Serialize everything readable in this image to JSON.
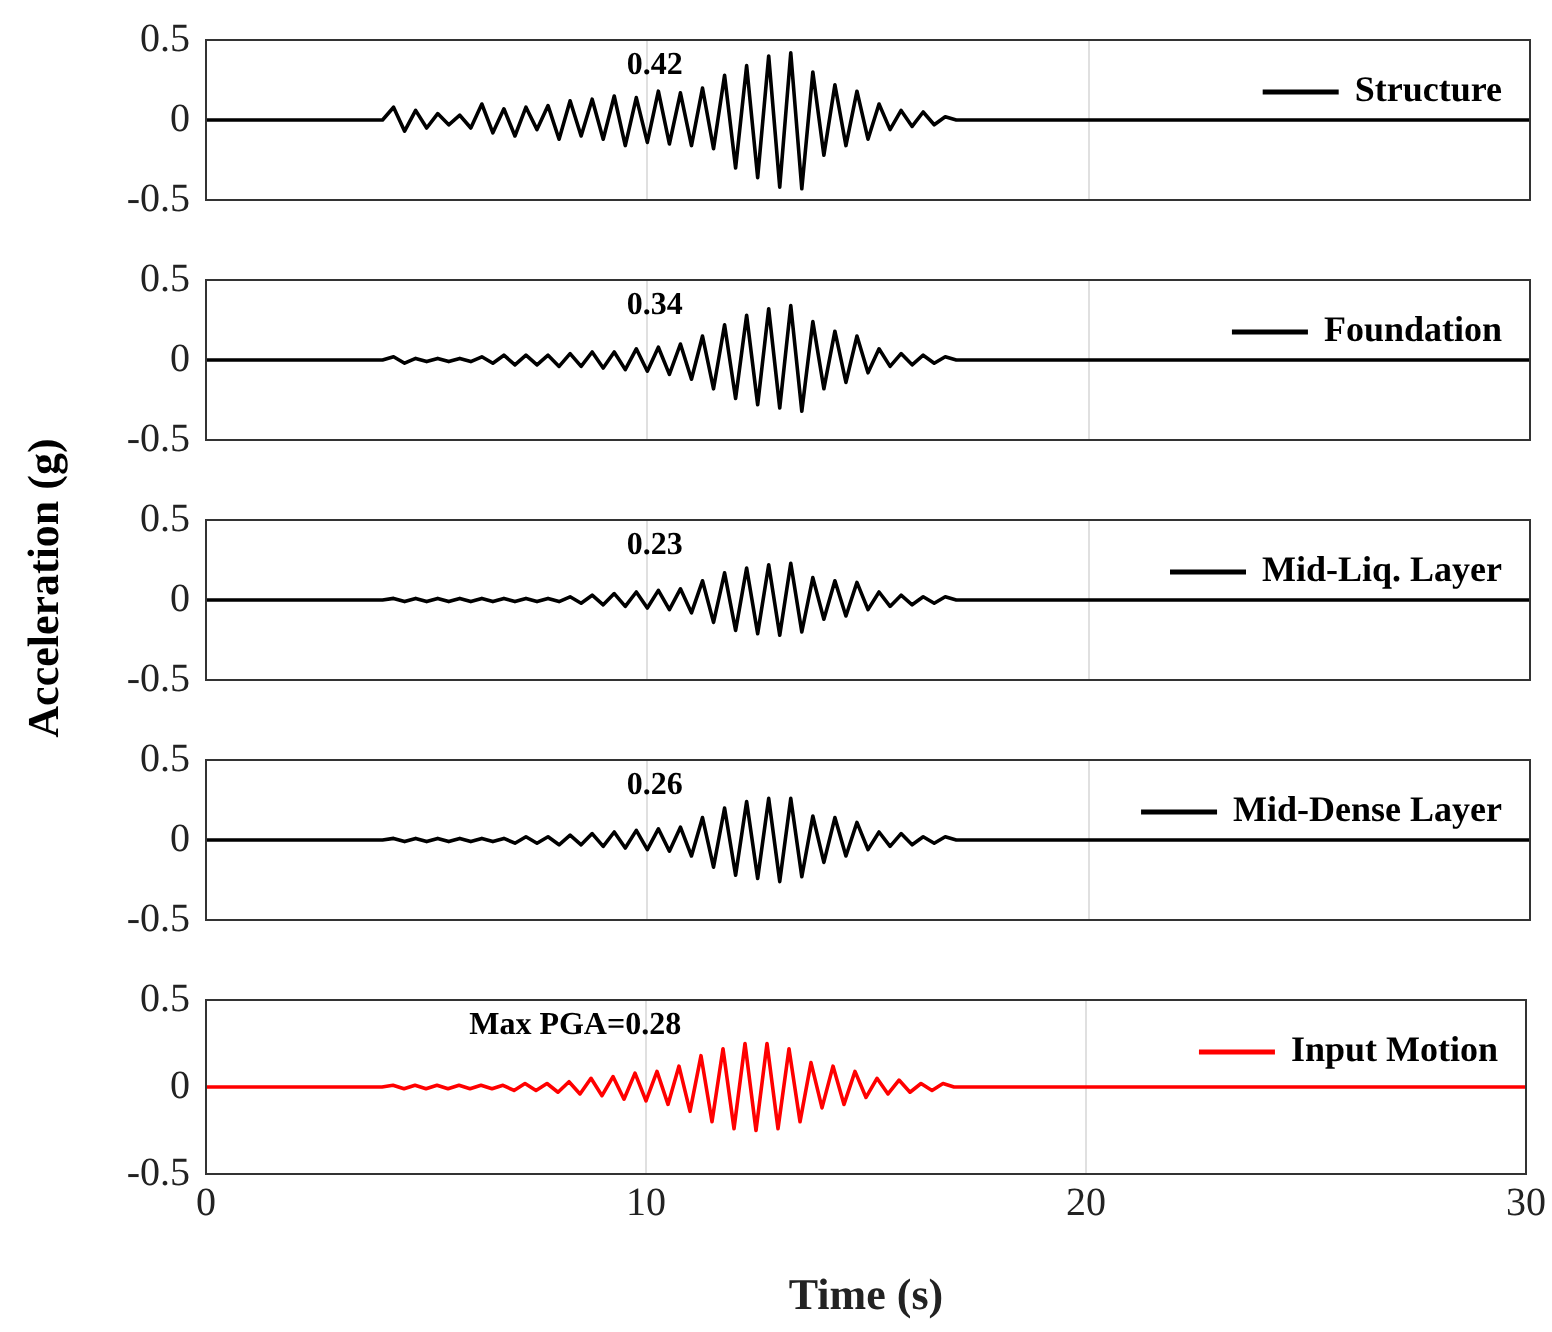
{
  "chart_data": [
    {
      "type": "line",
      "x": [
        0,
        4,
        4.25,
        4.5,
        4.75,
        5,
        5.25,
        5.5,
        5.75,
        6,
        6.25,
        6.5,
        6.75,
        7,
        7.25,
        7.5,
        7.75,
        8,
        8.25,
        8.5,
        8.75,
        9,
        9.25,
        9.5,
        9.75,
        10,
        10.25,
        10.5,
        10.75,
        11,
        11.25,
        11.5,
        11.75,
        12,
        12.25,
        12.5,
        12.75,
        13,
        13.25,
        13.5,
        13.75,
        14,
        14.25,
        14.5,
        14.75,
        15,
        15.25,
        15.5,
        15.75,
        16,
        16.25,
        16.5,
        16.75,
        17,
        30
      ],
      "xlim": [
        0,
        30
      ],
      "xticks": [
        0,
        10,
        20,
        30
      ],
      "ylim": [
        -0.5,
        0.5
      ],
      "yticks": [
        -0.5,
        0,
        0.5
      ],
      "grid": "x",
      "legend": "top right",
      "tick_labels": "y",
      "annotations": [
        "0.42"
      ],
      "series": [
        {
          "name": "Structure",
          "color": "#000000",
          "values": [
            0,
            0,
            0.08,
            -0.07,
            0.06,
            -0.05,
            0.04,
            -0.03,
            0.03,
            -0.05,
            0.1,
            -0.08,
            0.07,
            -0.1,
            0.08,
            -0.06,
            0.09,
            -0.12,
            0.12,
            -0.1,
            0.13,
            -0.12,
            0.15,
            -0.16,
            0.14,
            -0.14,
            0.18,
            -0.15,
            0.17,
            -0.16,
            0.2,
            -0.18,
            0.28,
            -0.3,
            0.34,
            -0.36,
            0.4,
            -0.42,
            0.42,
            -0.43,
            0.3,
            -0.22,
            0.22,
            -0.16,
            0.18,
            -0.12,
            0.1,
            -0.06,
            0.06,
            -0.04,
            0.05,
            -0.03,
            0.02,
            0,
            0
          ]
        }
      ]
    },
    {
      "type": "line",
      "x": [
        0,
        4,
        4.25,
        4.5,
        4.75,
        5,
        5.25,
        5.5,
        5.75,
        6,
        6.25,
        6.5,
        6.75,
        7,
        7.25,
        7.5,
        7.75,
        8,
        8.25,
        8.5,
        8.75,
        9,
        9.25,
        9.5,
        9.75,
        10,
        10.25,
        10.5,
        10.75,
        11,
        11.25,
        11.5,
        11.75,
        12,
        12.25,
        12.5,
        12.75,
        13,
        13.25,
        13.5,
        13.75,
        14,
        14.25,
        14.5,
        14.75,
        15,
        15.25,
        15.5,
        15.75,
        16,
        16.25,
        16.5,
        16.75,
        17,
        30
      ],
      "xlim": [
        0,
        30
      ],
      "xticks": [
        0,
        10,
        20,
        30
      ],
      "ylim": [
        -0.5,
        0.5
      ],
      "yticks": [
        -0.5,
        0,
        0.5
      ],
      "grid": "x",
      "legend": "top right",
      "tick_labels": "y",
      "annotations": [
        "0.34"
      ],
      "series": [
        {
          "name": "Foundation",
          "color": "#000000",
          "values": [
            0,
            0,
            0.02,
            -0.02,
            0.01,
            -0.01,
            0.01,
            -0.01,
            0.01,
            -0.01,
            0.02,
            -0.02,
            0.03,
            -0.03,
            0.03,
            -0.03,
            0.03,
            -0.04,
            0.04,
            -0.04,
            0.05,
            -0.05,
            0.05,
            -0.06,
            0.07,
            -0.07,
            0.08,
            -0.09,
            0.1,
            -0.12,
            0.15,
            -0.18,
            0.22,
            -0.24,
            0.28,
            -0.28,
            0.32,
            -0.3,
            0.34,
            -0.32,
            0.24,
            -0.18,
            0.18,
            -0.14,
            0.15,
            -0.08,
            0.07,
            -0.04,
            0.04,
            -0.03,
            0.03,
            -0.02,
            0.02,
            0,
            0
          ]
        }
      ]
    },
    {
      "type": "line",
      "ylabel": "Acceleration (g)",
      "x": [
        0,
        4,
        4.25,
        4.5,
        4.75,
        5,
        5.25,
        5.5,
        5.75,
        6,
        6.25,
        6.5,
        6.75,
        7,
        7.25,
        7.5,
        7.75,
        8,
        8.25,
        8.5,
        8.75,
        9,
        9.25,
        9.5,
        9.75,
        10,
        10.25,
        10.5,
        10.75,
        11,
        11.25,
        11.5,
        11.75,
        12,
        12.25,
        12.5,
        12.75,
        13,
        13.25,
        13.5,
        13.75,
        14,
        14.25,
        14.5,
        14.75,
        15,
        15.25,
        15.5,
        15.75,
        16,
        16.25,
        16.5,
        16.75,
        17,
        30
      ],
      "xlim": [
        0,
        30
      ],
      "xticks": [
        0,
        10,
        20,
        30
      ],
      "ylim": [
        -0.5,
        0.5
      ],
      "yticks": [
        -0.5,
        0,
        0.5
      ],
      "grid": "x",
      "legend": "top right",
      "tick_labels": "y",
      "annotations": [
        "0.23"
      ],
      "series": [
        {
          "name": "Mid-Liq. Layer",
          "color": "#000000",
          "values": [
            0,
            0,
            0.01,
            -0.01,
            0.01,
            -0.01,
            0.01,
            -0.01,
            0.01,
            -0.01,
            0.01,
            -0.01,
            0.01,
            -0.01,
            0.01,
            -0.01,
            0.01,
            -0.01,
            0.02,
            -0.02,
            0.03,
            -0.03,
            0.04,
            -0.04,
            0.05,
            -0.05,
            0.06,
            -0.06,
            0.07,
            -0.08,
            0.12,
            -0.14,
            0.17,
            -0.19,
            0.2,
            -0.21,
            0.22,
            -0.22,
            0.23,
            -0.2,
            0.14,
            -0.12,
            0.12,
            -0.1,
            0.11,
            -0.06,
            0.05,
            -0.04,
            0.03,
            -0.03,
            0.02,
            -0.02,
            0.02,
            0,
            0
          ]
        }
      ]
    },
    {
      "type": "line",
      "x": [
        0,
        4,
        4.25,
        4.5,
        4.75,
        5,
        5.25,
        5.5,
        5.75,
        6,
        6.25,
        6.5,
        6.75,
        7,
        7.25,
        7.5,
        7.75,
        8,
        8.25,
        8.5,
        8.75,
        9,
        9.25,
        9.5,
        9.75,
        10,
        10.25,
        10.5,
        10.75,
        11,
        11.25,
        11.5,
        11.75,
        12,
        12.25,
        12.5,
        12.75,
        13,
        13.25,
        13.5,
        13.75,
        14,
        14.25,
        14.5,
        14.75,
        15,
        15.25,
        15.5,
        15.75,
        16,
        16.25,
        16.5,
        16.75,
        17,
        30
      ],
      "xlim": [
        0,
        30
      ],
      "xticks": [
        0,
        10,
        20,
        30
      ],
      "ylim": [
        -0.5,
        0.5
      ],
      "yticks": [
        -0.5,
        0,
        0.5
      ],
      "grid": "x",
      "legend": "top right",
      "tick_labels": "y",
      "annotations": [
        "0.26"
      ],
      "series": [
        {
          "name": "Mid-Dense Layer",
          "color": "#000000",
          "values": [
            0,
            0,
            0.01,
            -0.01,
            0.01,
            -0.01,
            0.01,
            -0.01,
            0.01,
            -0.01,
            0.01,
            -0.01,
            0.01,
            -0.02,
            0.02,
            -0.02,
            0.02,
            -0.03,
            0.03,
            -0.03,
            0.04,
            -0.04,
            0.05,
            -0.05,
            0.06,
            -0.06,
            0.07,
            -0.07,
            0.08,
            -0.1,
            0.14,
            -0.17,
            0.2,
            -0.22,
            0.24,
            -0.24,
            0.26,
            -0.26,
            0.26,
            -0.23,
            0.15,
            -0.14,
            0.14,
            -0.1,
            0.11,
            -0.06,
            0.05,
            -0.04,
            0.04,
            -0.03,
            0.02,
            -0.02,
            0.02,
            0,
            0
          ]
        }
      ]
    },
    {
      "type": "line",
      "xlabel": "Time (s)",
      "x": [
        0,
        4,
        4.25,
        4.5,
        4.75,
        5,
        5.25,
        5.5,
        5.75,
        6,
        6.25,
        6.5,
        6.75,
        7,
        7.25,
        7.5,
        7.75,
        8,
        8.25,
        8.5,
        8.75,
        9,
        9.25,
        9.5,
        9.75,
        10,
        10.25,
        10.5,
        10.75,
        11,
        11.25,
        11.5,
        11.75,
        12,
        12.25,
        12.5,
        12.75,
        13,
        13.25,
        13.5,
        13.75,
        14,
        14.25,
        14.5,
        14.75,
        15,
        15.25,
        15.5,
        15.75,
        16,
        16.25,
        16.5,
        16.75,
        17,
        30
      ],
      "xlim": [
        0,
        30
      ],
      "xticks": [
        0,
        10,
        20,
        30
      ],
      "ylim": [
        -0.5,
        0.5
      ],
      "yticks": [
        -0.5,
        0,
        0.5
      ],
      "grid": "x",
      "legend": "top right",
      "annotations": [
        "Max PGA=0.28"
      ],
      "series": [
        {
          "name": "Input Motion",
          "color": "#ff0000",
          "values": [
            0,
            0,
            0.01,
            -0.01,
            0.01,
            -0.01,
            0.01,
            -0.01,
            0.01,
            -0.01,
            0.01,
            -0.01,
            0.01,
            -0.02,
            0.02,
            -0.02,
            0.02,
            -0.03,
            0.03,
            -0.04,
            0.05,
            -0.05,
            0.06,
            -0.07,
            0.08,
            -0.08,
            0.09,
            -0.1,
            0.12,
            -0.14,
            0.18,
            -0.2,
            0.22,
            -0.24,
            0.25,
            -0.25,
            0.25,
            -0.24,
            0.22,
            -0.2,
            0.14,
            -0.12,
            0.12,
            -0.1,
            0.09,
            -0.06,
            0.05,
            -0.04,
            0.04,
            -0.03,
            0.02,
            -0.02,
            0.02,
            0,
            0
          ]
        }
      ]
    }
  ]
}
